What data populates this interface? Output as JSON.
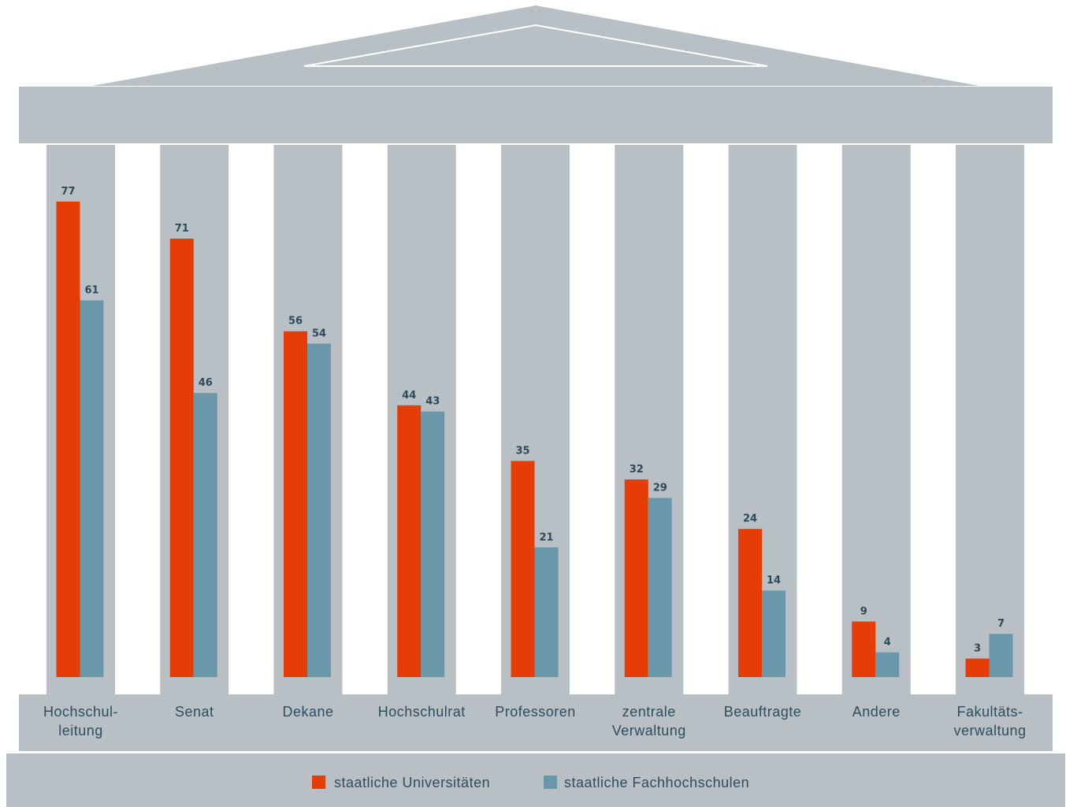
{
  "chart_data": {
    "type": "bar",
    "categories": [
      [
        "Hochschul-",
        "leitung"
      ],
      [
        "Senat"
      ],
      [
        "Dekane"
      ],
      [
        "Hochschulrat"
      ],
      [
        "Professoren"
      ],
      [
        "zentrale",
        "Verwaltung"
      ],
      [
        "Beauftragte"
      ],
      [
        "Andere"
      ],
      [
        "Fakultäts-",
        "verwaltung"
      ]
    ],
    "series": [
      {
        "name": "staatliche Universitäten",
        "color": "#e63c06",
        "values": [
          77,
          71,
          56,
          44,
          35,
          32,
          24,
          9,
          3
        ]
      },
      {
        "name": "staatliche Fachhochschulen",
        "color": "#6a97aa",
        "values": [
          61,
          46,
          54,
          43,
          21,
          29,
          14,
          4,
          7
        ]
      }
    ],
    "ylim": [
      0,
      77
    ],
    "grid": false,
    "legend": "bottom-center",
    "colors": {
      "building": "#b8c0c6",
      "label_text": "#2e4d5e",
      "value_text": "#2d4a5a"
    }
  }
}
